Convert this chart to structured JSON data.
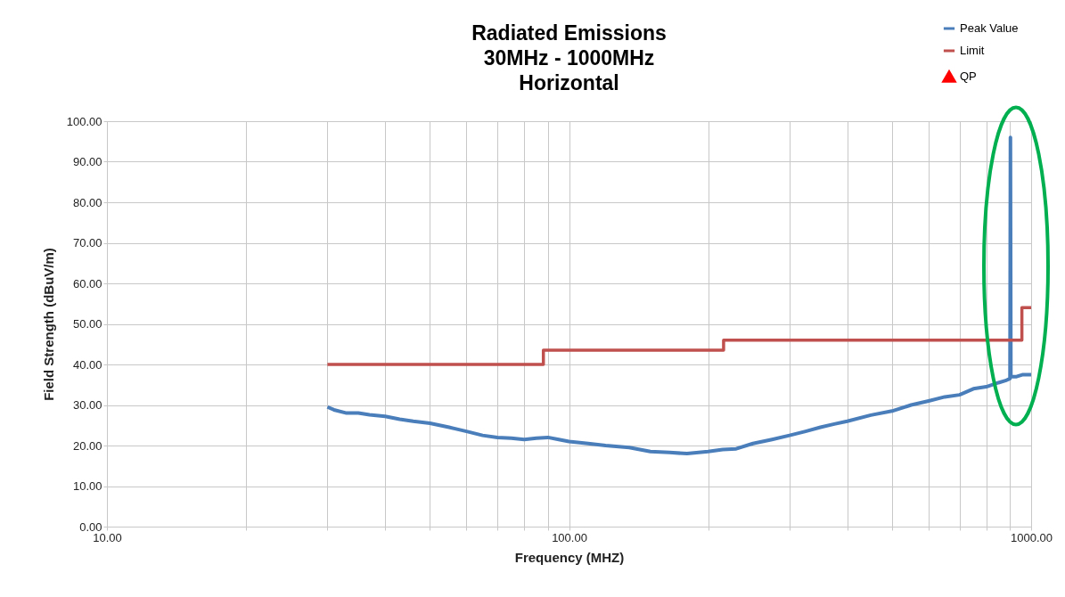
{
  "chart_data": {
    "type": "line",
    "title": "Radiated Emissions\n30MHz - 1000MHz\nHorizontal",
    "xlabel": "Frequency (MHZ)",
    "ylabel": "Field Strength (dBuV/m)",
    "log": "x",
    "xlim": [
      10,
      1000
    ],
    "ylim": [
      0,
      100
    ],
    "xticks": [
      {
        "value": 10,
        "label": "10.00"
      },
      {
        "value": 20,
        "label": null
      },
      {
        "value": 30,
        "label": null
      },
      {
        "value": 40,
        "label": null
      },
      {
        "value": 50,
        "label": null
      },
      {
        "value": 60,
        "label": null
      },
      {
        "value": 70,
        "label": null
      },
      {
        "value": 80,
        "label": null
      },
      {
        "value": 90,
        "label": null
      },
      {
        "value": 100,
        "label": "100.00"
      },
      {
        "value": 200,
        "label": null
      },
      {
        "value": 300,
        "label": null
      },
      {
        "value": 400,
        "label": null
      },
      {
        "value": 500,
        "label": null
      },
      {
        "value": 600,
        "label": null
      },
      {
        "value": 700,
        "label": null
      },
      {
        "value": 800,
        "label": null
      },
      {
        "value": 900,
        "label": null
      },
      {
        "value": 1000,
        "label": "1000.00"
      }
    ],
    "yticks": [
      {
        "value": 0,
        "label": "0.00"
      },
      {
        "value": 10,
        "label": "10.00"
      },
      {
        "value": 20,
        "label": "20.00"
      },
      {
        "value": 30,
        "label": "30.00"
      },
      {
        "value": 40,
        "label": "40.00"
      },
      {
        "value": 50,
        "label": "50.00"
      },
      {
        "value": 60,
        "label": "60.00"
      },
      {
        "value": 70,
        "label": "70.00"
      },
      {
        "value": 80,
        "label": "80.00"
      },
      {
        "value": 90,
        "label": "90.00"
      },
      {
        "value": 100,
        "label": "100.00"
      }
    ],
    "grid": true,
    "legend": "top right",
    "series": [
      {
        "name": "Peak Value",
        "color": "#4a7ebb",
        "x": [
          30,
          31,
          33,
          35,
          37,
          40,
          43,
          46,
          50,
          55,
          60,
          65,
          70,
          75,
          80,
          85,
          90,
          95,
          100,
          110,
          120,
          135,
          150,
          165,
          180,
          200,
          215,
          230,
          250,
          275,
          300,
          325,
          350,
          375,
          400,
          450,
          500,
          550,
          600,
          650,
          700,
          750,
          800,
          850,
          880,
          900,
          902,
          904,
          930,
          960,
          1000
        ],
        "values": [
          29.5,
          28.8,
          28,
          28,
          27.6,
          27.2,
          26.5,
          26,
          25.5,
          24.5,
          23.5,
          22.5,
          22,
          21.8,
          21.5,
          21.8,
          22,
          21.5,
          21,
          20.5,
          20,
          19.5,
          18.5,
          18.3,
          18,
          18.5,
          19,
          19.2,
          20.5,
          21.5,
          22.5,
          23.5,
          24.5,
          25.3,
          26,
          27.5,
          28.5,
          30,
          31,
          32,
          32.5,
          34,
          34.5,
          35.5,
          36,
          36.5,
          96,
          37,
          37,
          37.5,
          37.5
        ]
      },
      {
        "name": "Limit",
        "type": "step",
        "color": "#c0504d",
        "x": [
          30,
          88,
          216,
          955,
          1000
        ],
        "values": [
          40,
          43.5,
          46,
          54,
          54
        ]
      },
      {
        "name": "QP",
        "type": "scatter",
        "marker": "triangle",
        "color": "#ff0000"
      }
    ]
  }
}
